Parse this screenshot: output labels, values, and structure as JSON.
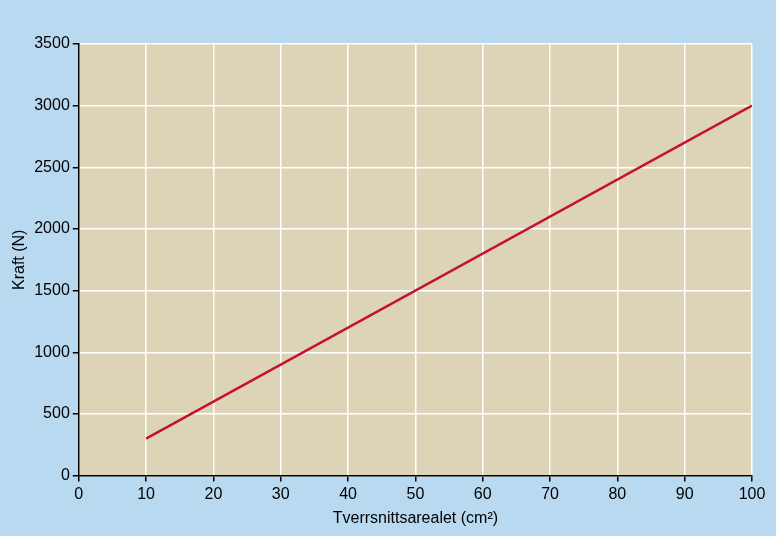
{
  "chart_data": {
    "type": "line",
    "x_label": "Tverrsnittsarealet (cm²)",
    "y_label": "Kraft (N)",
    "x": [
      10,
      100
    ],
    "values": [
      300,
      3000
    ],
    "color": "#c41230",
    "xlim": [
      0,
      100
    ],
    "xticks": [
      0,
      10,
      20,
      30,
      40,
      50,
      60,
      70,
      80,
      90,
      100
    ],
    "ylim": [
      0,
      3500
    ],
    "yticks": [
      0,
      500,
      1000,
      1500,
      2000,
      2500,
      3000,
      3500
    ],
    "grid": true
  }
}
